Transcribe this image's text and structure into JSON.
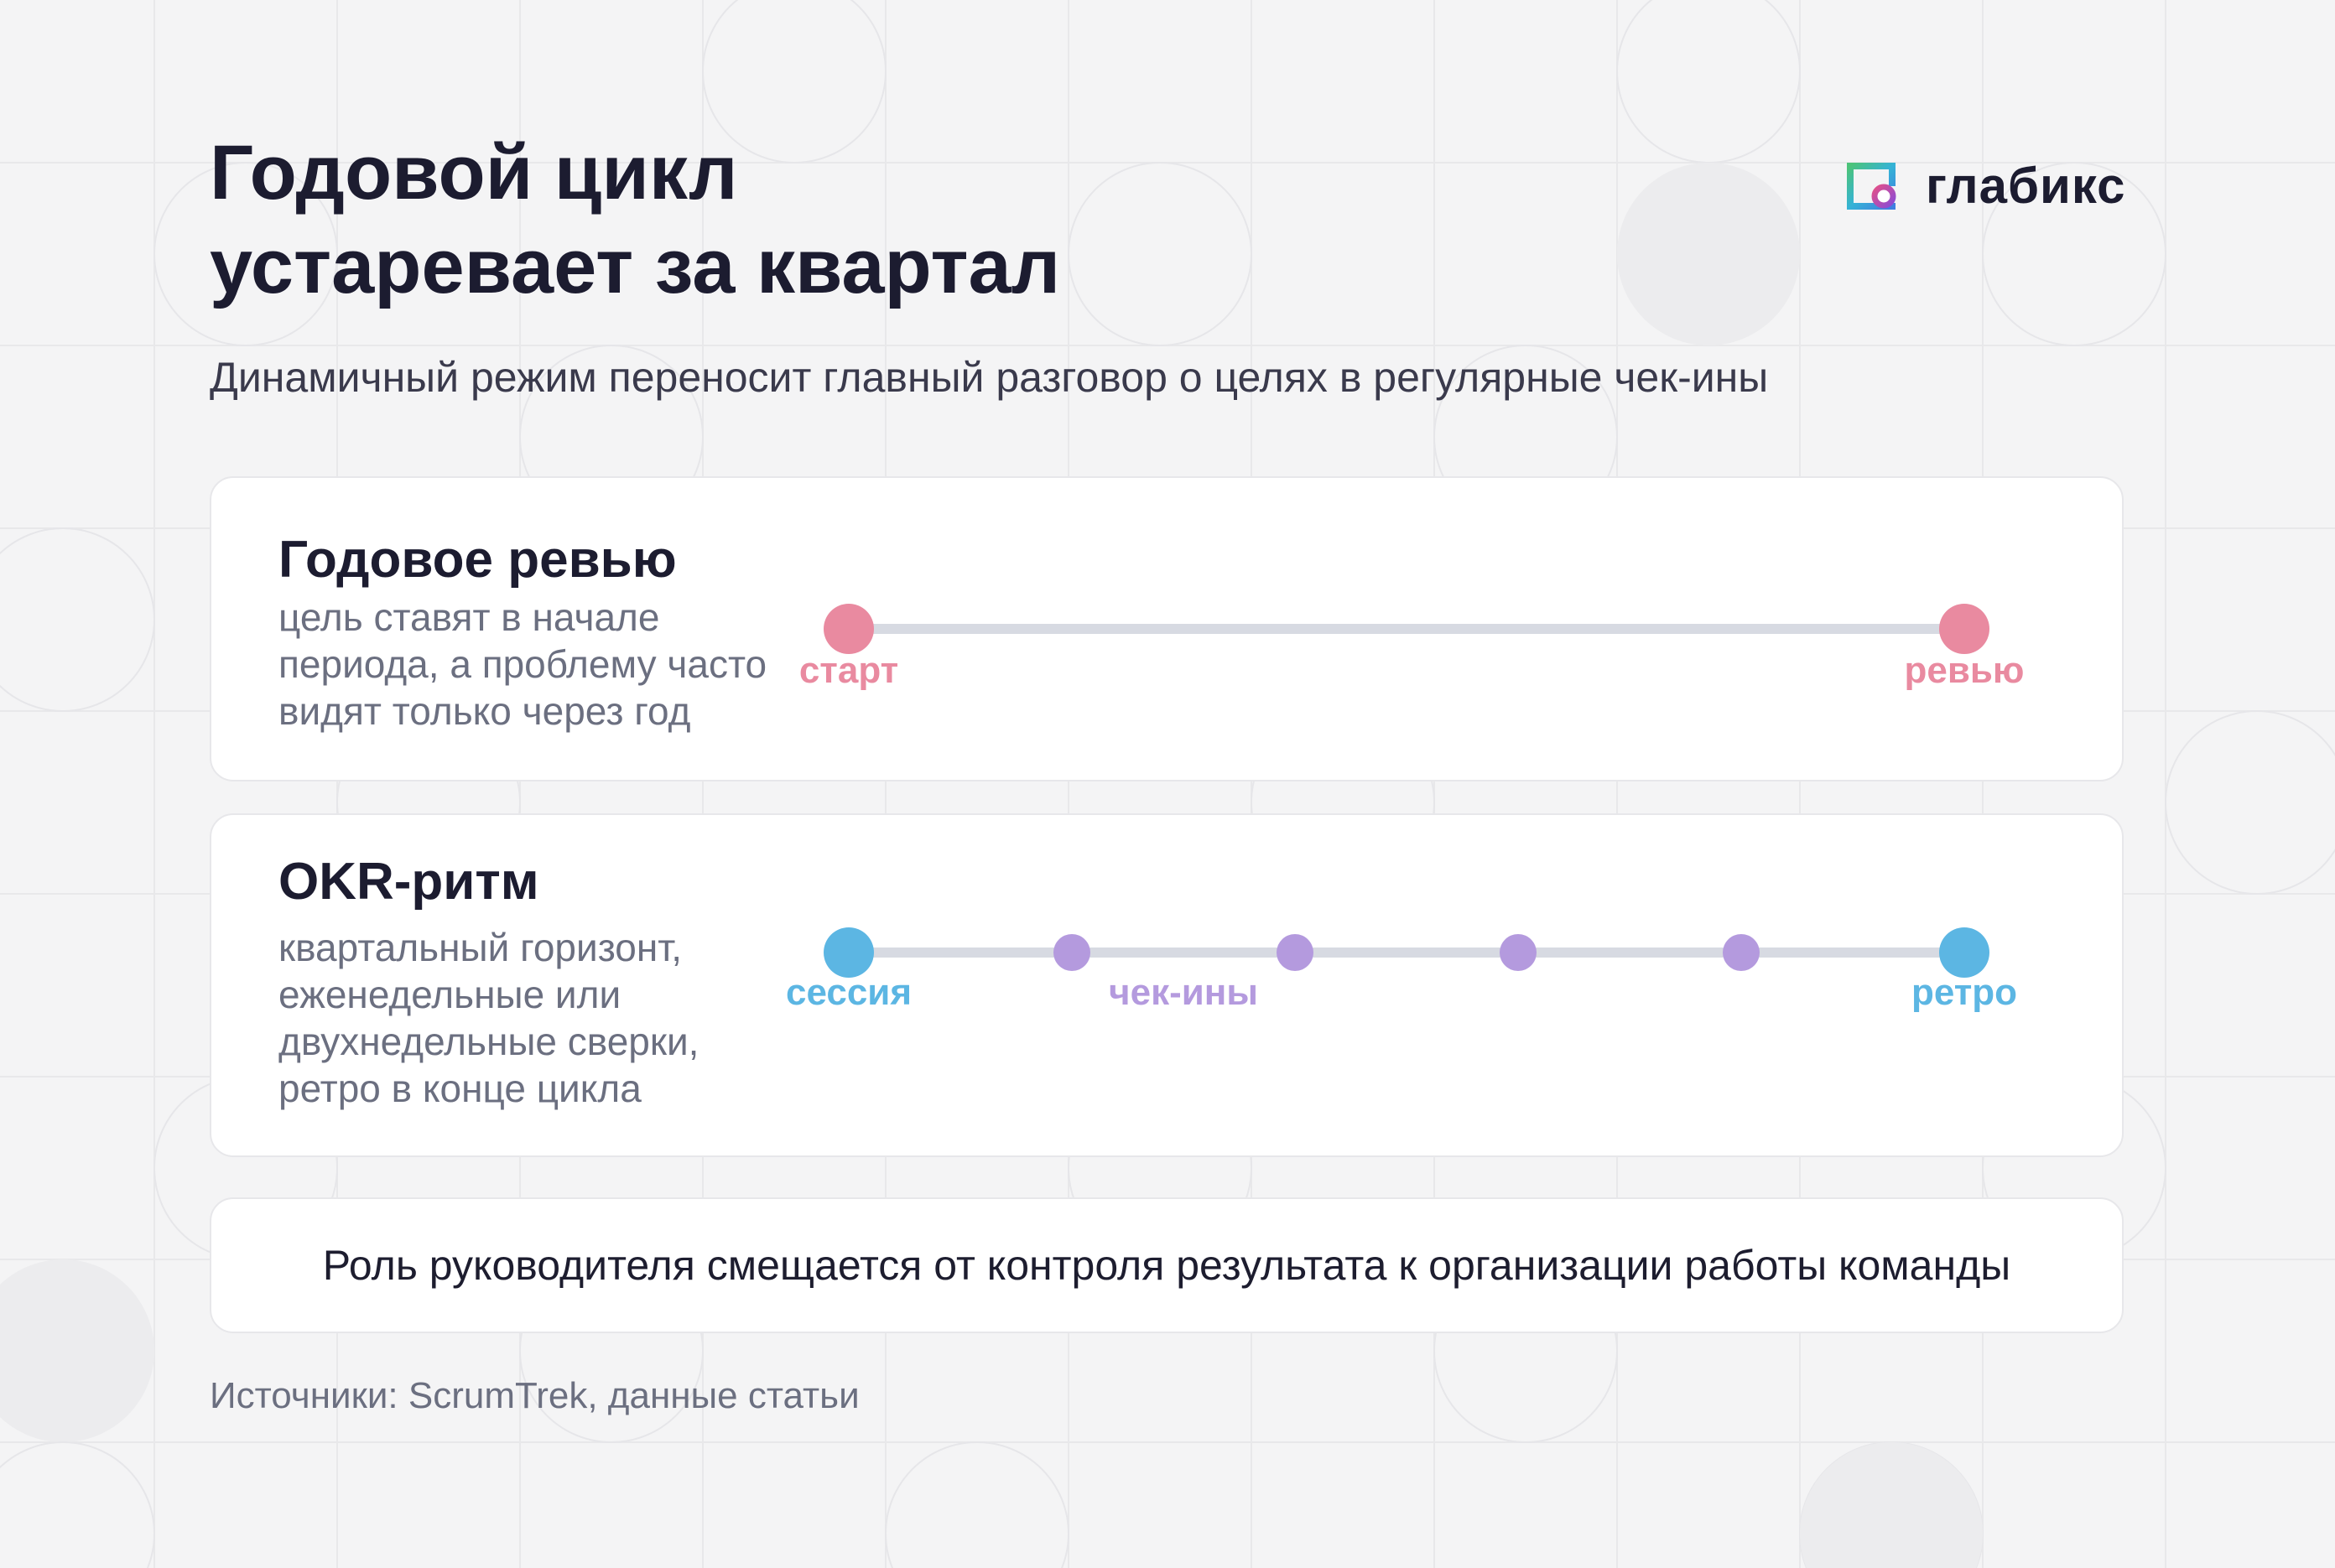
{
  "title_line1": "Годовой цикл",
  "title_line2": "устаревает за квартал",
  "subtitle": "Динамичный режим переносит главный разговор о целях в регулярные чек-ины",
  "logo": {
    "name": "глабикс",
    "icon": "glabix-logo-icon"
  },
  "annual": {
    "title": "Годовое ревью",
    "desc_lines": [
      "цель ставят в начале",
      "периода, а проблему часто",
      "видят только через год"
    ],
    "points": [
      {
        "label": "старт",
        "position": 0
      },
      {
        "label": "ревью",
        "position": 1
      }
    ],
    "color": "#e98aa0"
  },
  "okr": {
    "title": "OKR-ритм",
    "desc_lines": [
      "квартальный горизонт,",
      "еженедельные или",
      "двухнедельные сверки,",
      "ретро в конце цикла"
    ],
    "points": [
      {
        "label": "сессия",
        "position": 0,
        "kind": "major"
      },
      {
        "label": "",
        "position": 0.2,
        "kind": "minor"
      },
      {
        "label": "",
        "position": 0.4,
        "kind": "minor"
      },
      {
        "label": "",
        "position": 0.6,
        "kind": "minor"
      },
      {
        "label": "",
        "position": 0.8,
        "kind": "minor"
      },
      {
        "label": "ретро",
        "position": 1,
        "kind": "major"
      }
    ],
    "group_label": "чек-ины",
    "major_color": "#5cb6e3",
    "minor_color": "#b49ade"
  },
  "conclusion": "Роль руководителя смещается от контроля результата к организации работы команды",
  "source": "Источники: ScrumTrek, данные статьи",
  "colors": {
    "line": "#d7dae2",
    "title": "#1c1c30",
    "muted": "#6b6f80",
    "background": "#f4f4f5"
  }
}
